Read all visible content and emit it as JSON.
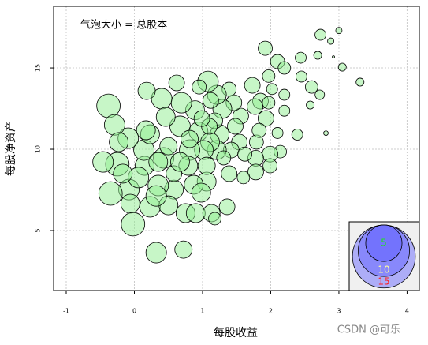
{
  "chart_data": {
    "type": "bubble",
    "annotation": "气泡大小 = 总股本",
    "x_label": "每股收益",
    "y_label": "每股净资产",
    "watermark": "CSDN @可乐",
    "xlim": [
      -1.185,
      4.18
    ],
    "ylim": [
      1.31,
      18.79
    ],
    "xticks": [
      -1,
      0,
      1,
      2,
      3,
      4
    ],
    "yticks": [
      5,
      10,
      15
    ],
    "grid": true,
    "series": [
      {
        "color": "rgba(144,238,144,0.5)",
        "x": [
          2.73,
          3.0,
          2.88,
          2.92,
          2.69,
          3.05,
          3.31,
          2.44,
          1.92,
          2.1,
          2.2,
          2.45,
          2.6,
          2.72,
          2.58,
          2.2,
          1.97,
          2.02,
          1.73,
          1.85,
          1.93,
          2.1,
          2.39,
          2.14,
          1.99,
          1.78,
          1.78,
          1.99,
          2.81,
          2.2,
          1.56,
          1.46,
          1.39,
          1.48,
          1.54,
          1.42,
          1.62,
          1.25,
          1.21,
          1.29,
          1.21,
          1.08,
          1.12,
          0.89,
          0.69,
          0.67,
          0.94,
          1.11,
          1.02,
          0.81,
          0.79,
          1.06,
          1.39,
          0.87,
          0.58,
          0.35,
          0.58,
          0.43,
          0.15,
          0.14,
          0.23,
          0.4,
          0.17,
          -0.09,
          -0.25,
          -0.08,
          -0.35,
          -0.06,
          0.23,
          0.5,
          0.75,
          0.32,
          0.98,
          0.9,
          1.13,
          1.36,
          1.18,
          -0.02,
          0.32,
          0.72,
          -0.38,
          -0.29,
          -0.46,
          0.46,
          -0.23,
          0.06,
          0.5,
          0.35,
          0.67,
          1.79,
          1.83,
          1.77,
          1.97,
          1.18,
          1.1,
          0.81,
          0.99,
          1.31,
          1.6,
          0.95,
          0.62,
          0.18,
          -0.17,
          1.06
        ],
        "y": [
          17.04,
          17.3,
          16.65,
          15.68,
          15.78,
          15.05,
          14.13,
          15.63,
          16.21,
          15.39,
          15.0,
          14.47,
          13.83,
          13.35,
          12.72,
          13.35,
          14.5,
          13.7,
          13.93,
          12.96,
          11.9,
          11.0,
          10.9,
          9.85,
          9.7,
          9.45,
          8.6,
          8.98,
          10.99,
          12.37,
          12.04,
          12.86,
          13.69,
          11.41,
          10.44,
          9.95,
          9.7,
          10.92,
          9.95,
          12.48,
          13.35,
          14.17,
          13.0,
          12.4,
          12.86,
          11.41,
          11.09,
          10.44,
          9.95,
          9.95,
          8.98,
          8.01,
          8.5,
          7.82,
          7.52,
          7.77,
          8.5,
          9.47,
          8.98,
          9.95,
          10.92,
          13.11,
          11.17,
          10.68,
          9.08,
          7.52,
          7.28,
          6.65,
          6.46,
          6.55,
          6.07,
          7.13,
          7.33,
          6.07,
          6.07,
          6.46,
          5.73,
          5.39,
          3.64,
          3.83,
          12.67,
          11.5,
          9.22,
          11.99,
          10.44,
          8.26,
          10.19,
          9.22,
          9.22,
          10.44,
          11.16,
          12.62,
          12.86,
          11.75,
          11.41,
          10.63,
          11.89,
          9.47,
          8.26,
          13.83,
          14.08,
          13.59,
          8.5,
          8.98
        ],
        "size": [
          0.46,
          0.15,
          0.15,
          0.02,
          0.24,
          0.24,
          0.24,
          0.46,
          0.76,
          0.76,
          0.6,
          0.46,
          0.6,
          0.34,
          0.24,
          0.46,
          0.6,
          0.46,
          0.94,
          0.94,
          0.94,
          0.46,
          0.46,
          0.6,
          0.94,
          0.94,
          0.94,
          0.76,
          0.08,
          0.46,
          0.94,
          0.94,
          0.76,
          0.94,
          0.94,
          0.94,
          0.76,
          1.36,
          1.36,
          1.36,
          1.36,
          1.6,
          0.94,
          1.36,
          1.6,
          1.6,
          1.36,
          1.36,
          1.36,
          1.6,
          1.36,
          1.36,
          0.94,
          1.36,
          1.36,
          1.6,
          0.94,
          1.6,
          1.36,
          1.6,
          1.36,
          1.6,
          1.36,
          1.6,
          2.1,
          1.6,
          2.1,
          1.36,
          1.6,
          1.36,
          1.36,
          1.6,
          1.36,
          1.36,
          1.14,
          0.94,
          0.6,
          2.1,
          1.6,
          1.14,
          2.1,
          1.6,
          1.6,
          1.36,
          1.36,
          1.6,
          1.14,
          1.36,
          1.36,
          0.76,
          0.76,
          0.94,
          0.6,
          0.94,
          0.94,
          1.14,
          0.94,
          0.76,
          0.6,
          0.76,
          0.94,
          1.14,
          1.36,
          1.14
        ]
      }
    ],
    "size_legend": {
      "sizes": [
        15,
        10,
        5
      ],
      "label_colors": [
        "#ff2020",
        "#ffffa0",
        "#20e020"
      ],
      "color": "rgba(90,90,255,0.45)"
    }
  }
}
